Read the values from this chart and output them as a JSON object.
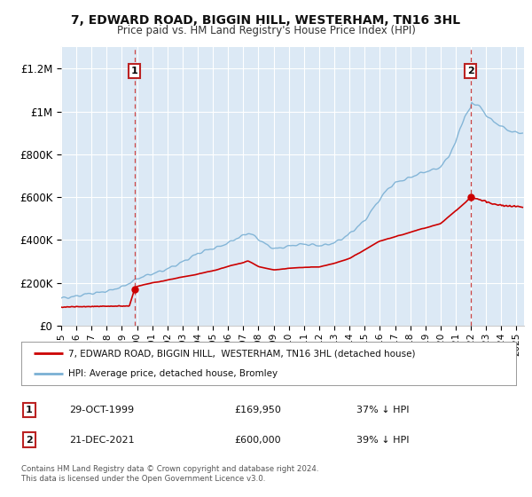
{
  "title": "7, EDWARD ROAD, BIGGIN HILL, WESTERHAM, TN16 3HL",
  "subtitle": "Price paid vs. HM Land Registry's House Price Index (HPI)",
  "ylim": [
    0,
    1300000
  ],
  "yticks": [
    0,
    200000,
    400000,
    600000,
    800000,
    1000000,
    1200000
  ],
  "ytick_labels": [
    "£0",
    "£200K",
    "£400K",
    "£600K",
    "£800K",
    "£1M",
    "£1.2M"
  ],
  "bg_color": "#dce9f5",
  "grid_color": "#ffffff",
  "red_line_color": "#cc0000",
  "blue_line_color": "#7ab0d4",
  "sale1_x": 1999.83,
  "sale1_y": 169950,
  "sale2_x": 2021.97,
  "sale2_y": 600000,
  "legend_red": "7, EDWARD ROAD, BIGGIN HILL,  WESTERHAM, TN16 3HL (detached house)",
  "legend_blue": "HPI: Average price, detached house, Bromley",
  "note1_date": "29-OCT-1999",
  "note1_price": "£169,950",
  "note1_hpi": "37% ↓ HPI",
  "note2_date": "21-DEC-2021",
  "note2_price": "£600,000",
  "note2_hpi": "39% ↓ HPI",
  "footer": "Contains HM Land Registry data © Crown copyright and database right 2024.\nThis data is licensed under the Open Government Licence v3.0.",
  "xmin": 1995.0,
  "xmax": 2025.5,
  "xticks": [
    1995,
    1996,
    1997,
    1998,
    1999,
    2000,
    2001,
    2002,
    2003,
    2004,
    2005,
    2006,
    2007,
    2008,
    2009,
    2010,
    2011,
    2012,
    2013,
    2014,
    2015,
    2016,
    2017,
    2018,
    2019,
    2020,
    2021,
    2022,
    2023,
    2024,
    2025
  ],
  "hpi_anchors_x": [
    1995,
    1995.5,
    1996,
    1997,
    1998,
    1999,
    1999.5,
    2000,
    2000.5,
    2001,
    2001.5,
    2002,
    2002.5,
    2003,
    2003.5,
    2004,
    2004.5,
    2005,
    2005.5,
    2006,
    2006.5,
    2007,
    2007.3,
    2007.6,
    2008,
    2008.5,
    2009,
    2009.5,
    2010,
    2010.5,
    2011,
    2011.5,
    2012,
    2012.5,
    2013,
    2013.5,
    2014,
    2014.5,
    2015,
    2015.5,
    2016,
    2016.5,
    2017,
    2017.3,
    2017.6,
    2018,
    2018.5,
    2019,
    2019.5,
    2020,
    2020.5,
    2021,
    2021.3,
    2021.6,
    2021.97,
    2022,
    2022.3,
    2022.6,
    2023,
    2023.5,
    2024,
    2024.5,
    2025
  ],
  "hpi_anchors_y": [
    128000,
    132000,
    138000,
    148000,
    162000,
    180000,
    195000,
    215000,
    228000,
    240000,
    250000,
    262000,
    278000,
    295000,
    315000,
    335000,
    348000,
    358000,
    368000,
    382000,
    400000,
    418000,
    428000,
    420000,
    400000,
    375000,
    355000,
    360000,
    370000,
    375000,
    378000,
    375000,
    372000,
    378000,
    388000,
    405000,
    430000,
    460000,
    490000,
    540000,
    590000,
    640000,
    670000,
    680000,
    685000,
    695000,
    710000,
    720000,
    730000,
    745000,
    790000,
    860000,
    930000,
    980000,
    1020000,
    1050000,
    1040000,
    1030000,
    990000,
    960000,
    940000,
    920000,
    910000
  ],
  "red_anchors_x": [
    1995,
    1995.5,
    1996,
    1997,
    1998,
    1999,
    1999.5,
    1999.83,
    1999.84,
    2000,
    2001,
    2002,
    2003,
    2004,
    2005,
    2005.5,
    2006,
    2007,
    2007.3,
    2007.6,
    2008,
    2009,
    2010,
    2011,
    2012,
    2013,
    2014,
    2015,
    2016,
    2017,
    2018,
    2019,
    2020,
    2021,
    2021.5,
    2021.97,
    2021.98,
    2022,
    2022.5,
    2023,
    2023.5,
    2024,
    2025
  ],
  "red_anchors_y": [
    86000,
    87000,
    88000,
    89000,
    90000,
    91000,
    92000,
    169950,
    172000,
    182000,
    198000,
    212000,
    225000,
    240000,
    255000,
    265000,
    278000,
    295000,
    305000,
    295000,
    278000,
    262000,
    272000,
    278000,
    280000,
    295000,
    320000,
    360000,
    400000,
    420000,
    440000,
    460000,
    480000,
    540000,
    570000,
    600000,
    600000,
    598000,
    590000,
    578000,
    568000,
    562000,
    555000
  ]
}
